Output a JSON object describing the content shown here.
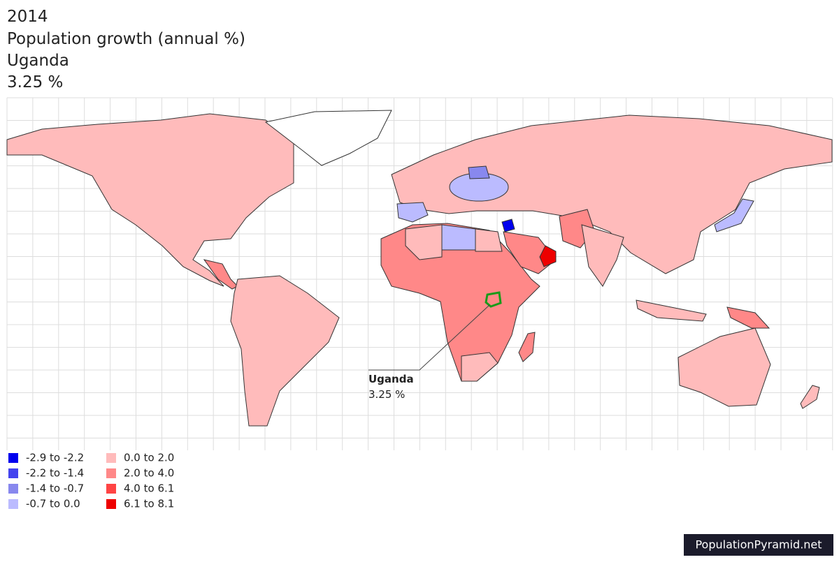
{
  "header": {
    "year": "2014",
    "indicator": "Population growth (annual %)",
    "country": "Uganda",
    "value": "3.25 %"
  },
  "callout": {
    "name": "Uganda",
    "value": "3.25 %"
  },
  "legend": [
    {
      "label": "-2.9 to -2.2",
      "color": "#0000ee"
    },
    {
      "label": "-2.2 to -1.4",
      "color": "#4444ee"
    },
    {
      "label": "-1.4 to -0.7",
      "color": "#8888ee"
    },
    {
      "label": "-0.7 to 0.0",
      "color": "#bbbbff"
    },
    {
      "label": "0.0 to 2.0",
      "color": "#ffbbbb"
    },
    {
      "label": "2.0 to 4.0",
      "color": "#ff8888"
    },
    {
      "label": "4.0 to 6.1",
      "color": "#ff4444"
    },
    {
      "label": "6.1 to 8.1",
      "color": "#ee0000"
    }
  ],
  "footer": {
    "watermark": "PopulationPyramid.net"
  }
}
